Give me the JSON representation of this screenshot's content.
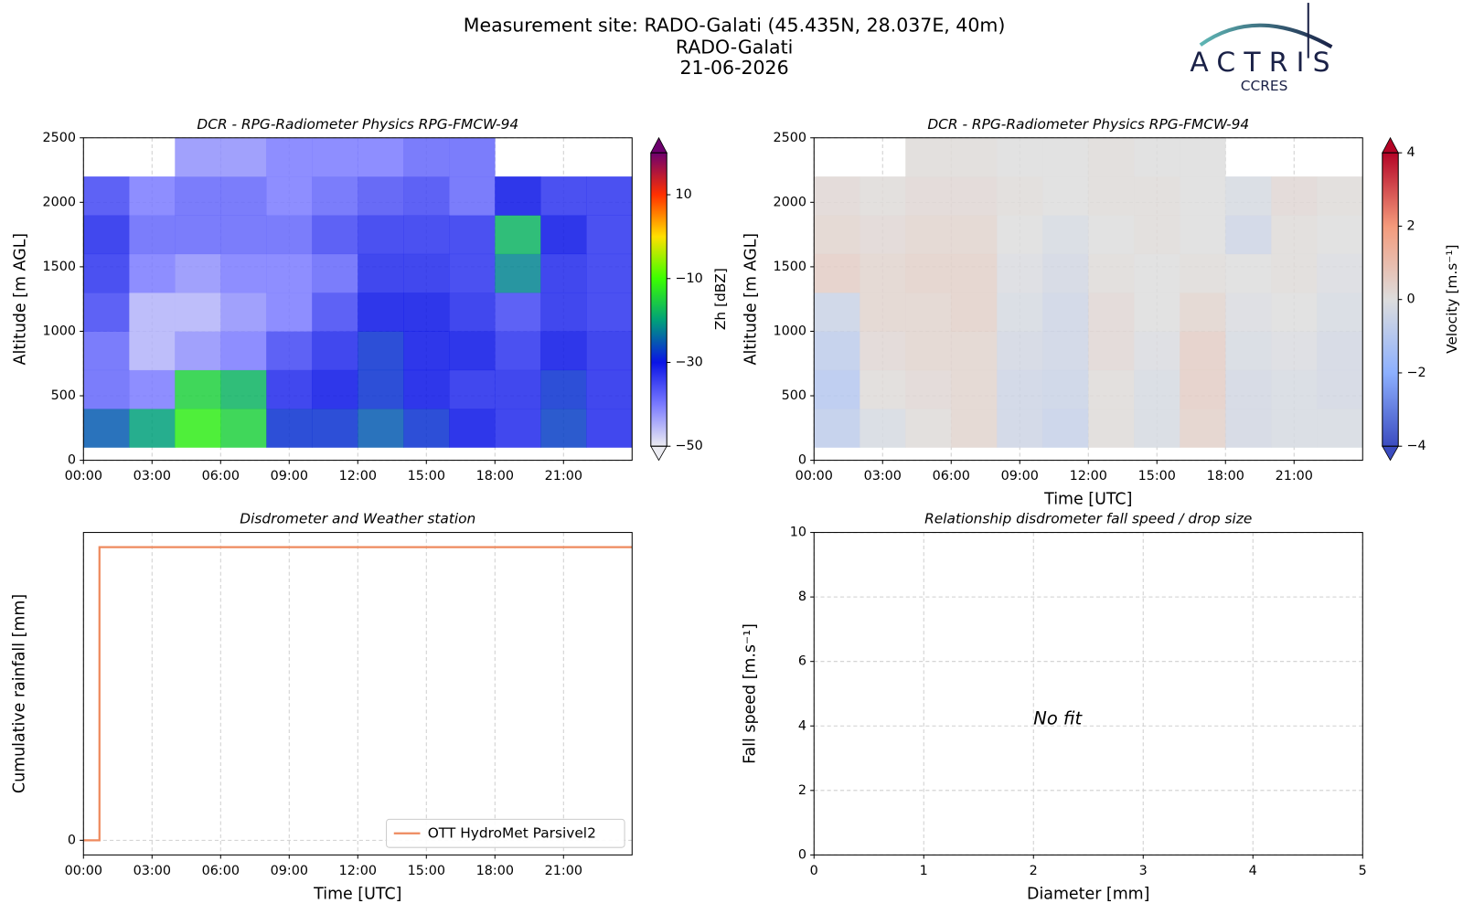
{
  "figure": {
    "title_lines": [
      "Measurement site: RADO-Galati (45.435N, 28.037E, 40m)",
      "RADO-Galati",
      "21-06-2026"
    ],
    "logo": {
      "name": "ACTRIS",
      "sub": "CCRES"
    }
  },
  "chart_data": [
    {
      "type": "heatmap",
      "title": "DCR - RPG-Radiometer Physics RPG-FMCW-94",
      "ylabel": "Altitude [m AGL]",
      "x_edges": [
        0,
        2,
        4,
        6,
        8,
        10,
        12,
        14,
        16,
        18,
        20,
        22,
        24
      ],
      "y_edges": [
        100,
        400,
        700,
        1000,
        1300,
        1600,
        1900,
        2200,
        2500
      ],
      "values": [
        [
          -25,
          -20,
          -12,
          -15,
          -28,
          -28,
          -25,
          -28,
          -30,
          -32,
          -27,
          -32
        ],
        [
          -38,
          -40,
          -15,
          -18,
          -32,
          -30,
          -28,
          -30,
          -32,
          -32,
          -28,
          -32
        ],
        [
          -38,
          -45,
          -42,
          -40,
          -35,
          -32,
          -28,
          -30,
          -30,
          -33,
          -30,
          -32
        ],
        [
          -35,
          -45,
          -45,
          -42,
          -40,
          -35,
          -30,
          -30,
          -32,
          -35,
          -32,
          -33
        ],
        [
          -33,
          -40,
          -42,
          -40,
          -40,
          -38,
          -32,
          -32,
          -33,
          -22,
          -32,
          -33
        ],
        [
          -32,
          -38,
          -38,
          -38,
          -38,
          -35,
          -33,
          -33,
          -33,
          -18,
          -30,
          -33
        ],
        [
          -35,
          -40,
          -38,
          -38,
          -40,
          -38,
          -36,
          -35,
          -38,
          -30,
          -33,
          -33
        ],
        [
          null,
          null,
          -42,
          -42,
          -40,
          -40,
          -40,
          -38,
          -38,
          null,
          null,
          null
        ]
      ],
      "xlim": [
        0,
        24
      ],
      "xticks": [
        {
          "value": 0,
          "label": "00:00"
        },
        {
          "value": 3,
          "label": "03:00"
        },
        {
          "value": 6,
          "label": "06:00"
        },
        {
          "value": 9,
          "label": "09:00"
        },
        {
          "value": 12,
          "label": "12:00"
        },
        {
          "value": 15,
          "label": "15:00"
        },
        {
          "value": 18,
          "label": "18:00"
        },
        {
          "value": 21,
          "label": "21:00"
        }
      ],
      "ylim": [
        0,
        2500
      ],
      "yticks": [
        0,
        500,
        1000,
        1500,
        2000,
        2500
      ],
      "grid": true,
      "colormap": [
        [
          -50,
          "#ececf2"
        ],
        [
          -40,
          "#7a7aff"
        ],
        [
          -30,
          "#0a14e6"
        ],
        [
          -20,
          "#00a07a"
        ],
        [
          -10,
          "#3cff00"
        ],
        [
          0,
          "#ffe000"
        ],
        [
          10,
          "#ff3000"
        ],
        [
          20,
          "#6e006e"
        ]
      ],
      "colorbar": {
        "label": "Zh [dBZ]",
        "clim": [
          -50,
          20
        ],
        "ticks": [
          {
            "value": -50,
            "label": "−50"
          },
          {
            "value": -30,
            "label": "−30"
          },
          {
            "value": -10,
            "label": "−10"
          },
          10
        ]
      }
    },
    {
      "type": "heatmap",
      "title": "DCR - RPG-Radiometer Physics RPG-FMCW-94",
      "xlabel": "Time [UTC]",
      "ylabel": "Altitude [m AGL]",
      "x_edges": [
        0,
        2,
        4,
        6,
        8,
        10,
        12,
        14,
        16,
        18,
        20,
        22,
        24
      ],
      "y_edges": [
        100,
        400,
        700,
        1000,
        1300,
        1600,
        1900,
        2200,
        2500
      ],
      "values": [
        [
          -0.8,
          -0.2,
          0.1,
          0.3,
          -0.4,
          -0.6,
          0.1,
          -0.2,
          0.4,
          -0.3,
          -0.2,
          -0.2
        ],
        [
          -1.0,
          0.1,
          0.2,
          0.3,
          -0.4,
          -0.5,
          0.1,
          -0.2,
          0.5,
          -0.3,
          -0.2,
          -0.3
        ],
        [
          -0.8,
          0.2,
          0.3,
          0.3,
          -0.3,
          -0.4,
          0.2,
          -0.1,
          0.5,
          -0.2,
          -0.1,
          -0.3
        ],
        [
          -0.5,
          0.3,
          0.3,
          0.4,
          -0.2,
          -0.4,
          0.2,
          0.0,
          0.3,
          -0.1,
          0.0,
          -0.2
        ],
        [
          0.5,
          0.3,
          0.4,
          0.4,
          -0.1,
          -0.3,
          0.1,
          0.0,
          0.1,
          0.0,
          0.1,
          -0.1
        ],
        [
          0.3,
          0.2,
          0.3,
          0.3,
          0.0,
          -0.2,
          0.0,
          0.1,
          0.0,
          -0.4,
          0.1,
          0.0
        ],
        [
          0.2,
          0.1,
          0.2,
          0.2,
          0.1,
          0.0,
          0.1,
          0.1,
          0.0,
          -0.2,
          0.2,
          0.1
        ],
        [
          null,
          null,
          0.1,
          0.1,
          0.0,
          0.0,
          0.1,
          0.0,
          0.0,
          null,
          null,
          null
        ]
      ],
      "xlim": [
        0,
        24
      ],
      "xticks": [
        {
          "value": 0,
          "label": "00:00"
        },
        {
          "value": 3,
          "label": "03:00"
        },
        {
          "value": 6,
          "label": "06:00"
        },
        {
          "value": 9,
          "label": "09:00"
        },
        {
          "value": 12,
          "label": "12:00"
        },
        {
          "value": 15,
          "label": "15:00"
        },
        {
          "value": 18,
          "label": "18:00"
        },
        {
          "value": 21,
          "label": "21:00"
        }
      ],
      "ylim": [
        0,
        2500
      ],
      "yticks": [
        0,
        500,
        1000,
        1500,
        2000,
        2500
      ],
      "grid": true,
      "colormap": [
        [
          -4,
          "#3b4cc0"
        ],
        [
          -2,
          "#8db0fe"
        ],
        [
          0,
          "#dddddd"
        ],
        [
          2,
          "#f49a7b"
        ],
        [
          4,
          "#b40426"
        ]
      ],
      "colorbar": {
        "label": "Velocity [m.s⁻¹]",
        "clim": [
          -4,
          4
        ],
        "ticks": [
          {
            "value": -4,
            "label": "−4"
          },
          {
            "value": -2,
            "label": "−2"
          },
          0,
          2,
          4
        ]
      }
    },
    {
      "type": "line",
      "title": "Disdrometer and Weather station",
      "xlabel": "Time [UTC]",
      "ylabel": "Cumulative rainfall [mm]",
      "x": [
        0,
        0.7,
        0.7,
        24
      ],
      "series": [
        {
          "name": "OTT HydroMet Parsivel2",
          "color": "#ee8a5e",
          "values": [
            0,
            0,
            1,
            1
          ]
        }
      ],
      "xlim": [
        0,
        24
      ],
      "xticks": [
        {
          "value": 0,
          "label": "00:00"
        },
        {
          "value": 3,
          "label": "03:00"
        },
        {
          "value": 6,
          "label": "06:00"
        },
        {
          "value": 9,
          "label": "09:00"
        },
        {
          "value": 12,
          "label": "12:00"
        },
        {
          "value": 15,
          "label": "15:00"
        },
        {
          "value": 18,
          "label": "18:00"
        },
        {
          "value": 21,
          "label": "21:00"
        }
      ],
      "ylim": [
        -0.05,
        1.05
      ],
      "yticks": [
        0
      ],
      "grid": true,
      "legend": "lower right"
    },
    {
      "type": "scatter",
      "title": "Relationship disdrometer fall speed / drop size",
      "xlabel": "Diameter [mm]",
      "ylabel": "Fall speed [m.s⁻¹]",
      "xlim": [
        0,
        5
      ],
      "xticks": [
        0,
        1,
        2,
        3,
        4,
        5
      ],
      "ylim": [
        0,
        10
      ],
      "yticks": [
        0,
        2,
        4,
        6,
        8,
        10
      ],
      "grid": true,
      "annotation": "No fit"
    }
  ]
}
